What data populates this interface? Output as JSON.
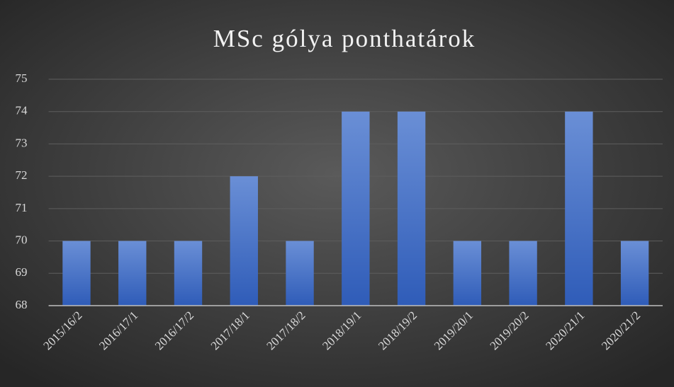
{
  "chart_data": {
    "type": "bar",
    "title": "MSc gólya ponthatárok",
    "categories": [
      "2015/16/2",
      "2016/17/1",
      "2016/17/2",
      "2017/18/1",
      "2017/18/2",
      "2018/19/1",
      "2018/19/2",
      "2019/20/1",
      "2019/20/2",
      "2020/21/1",
      "2020/21/2"
    ],
    "values": [
      70,
      70,
      70,
      72,
      70,
      74,
      74,
      70,
      70,
      74,
      70
    ],
    "color": "#4472c4",
    "ylim": [
      68,
      75
    ],
    "yticks": [
      68,
      69,
      70,
      71,
      72,
      73,
      74,
      75
    ],
    "grid": true
  }
}
